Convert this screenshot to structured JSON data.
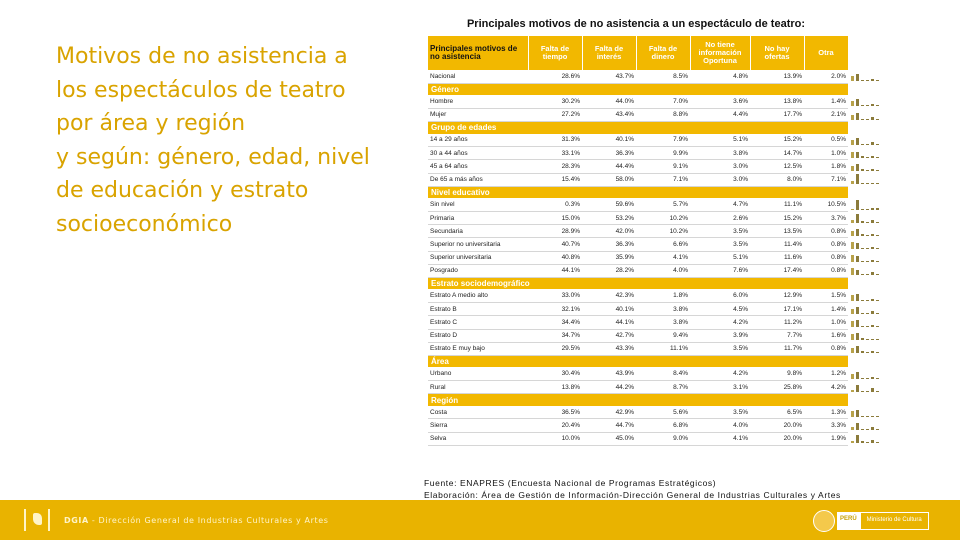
{
  "slide_title": "Motivos de no asistencia a\nlos espectáculos de teatro\npor área y región\ny según: género, edad, nivel\nde educación y estrato\nsocioeconómico",
  "table": {
    "caption": "Principales motivos de no asistencia a un espectáculo de teatro:",
    "headers": [
      "Principales motivos de no asistencia",
      "Falta de tiempo",
      "Falta de interés",
      "Falta de dinero",
      "No tiene información Oportuna",
      "No hay ofertas",
      "Otra"
    ],
    "rows": [
      {
        "type": "row",
        "label": "Nacional",
        "values": [
          "28.6%",
          "43.7%",
          "8.5%",
          "4.8%",
          "13.9%",
          "2.0%"
        ]
      },
      {
        "type": "group",
        "label": "Género"
      },
      {
        "type": "row",
        "label": "Hombre",
        "values": [
          "30.2%",
          "44.0%",
          "7.0%",
          "3.6%",
          "13.8%",
          "1.4%"
        ]
      },
      {
        "type": "row",
        "label": "Mujer",
        "values": [
          "27.2%",
          "43.4%",
          "8.8%",
          "4.4%",
          "17.7%",
          "2.1%"
        ]
      },
      {
        "type": "group",
        "label": "Grupo de edades"
      },
      {
        "type": "row",
        "label": "14 a 29 años",
        "values": [
          "31.3%",
          "40.1%",
          "7.9%",
          "5.1%",
          "15.2%",
          "0.5%"
        ]
      },
      {
        "type": "row",
        "label": "30 a 44 años",
        "values": [
          "33.1%",
          "36.3%",
          "9.9%",
          "3.8%",
          "14.7%",
          "1.0%"
        ]
      },
      {
        "type": "row",
        "label": "45 a 64 años",
        "values": [
          "28.3%",
          "44.4%",
          "9.1%",
          "3.0%",
          "12.5%",
          "1.8%"
        ]
      },
      {
        "type": "row",
        "label": "De 65 a más años",
        "values": [
          "15.4%",
          "58.0%",
          "7.1%",
          "3.0%",
          "8.0%",
          "7.1%"
        ]
      },
      {
        "type": "group",
        "label": "Nivel educativo"
      },
      {
        "type": "row",
        "label": "Sin nivel",
        "values": [
          "0.3%",
          "59.6%",
          "5.7%",
          "4.7%",
          "11.1%",
          "10.5%"
        ]
      },
      {
        "type": "row",
        "label": "Primaria",
        "values": [
          "15.0%",
          "53.2%",
          "10.2%",
          "2.6%",
          "15.2%",
          "3.7%"
        ]
      },
      {
        "type": "row",
        "label": "Secundaria",
        "values": [
          "28.9%",
          "42.0%",
          "10.2%",
          "3.5%",
          "13.5%",
          "0.8%"
        ]
      },
      {
        "type": "row",
        "label": "Superior no universitaria",
        "values": [
          "40.7%",
          "36.3%",
          "6.6%",
          "3.5%",
          "11.4%",
          "0.8%"
        ]
      },
      {
        "type": "row",
        "label": "Superior universitaria",
        "values": [
          "40.8%",
          "35.9%",
          "4.1%",
          "5.1%",
          "11.6%",
          "0.8%"
        ]
      },
      {
        "type": "row",
        "label": "Posgrado",
        "values": [
          "44.1%",
          "28.2%",
          "4.0%",
          "7.6%",
          "17.4%",
          "0.8%"
        ]
      },
      {
        "type": "group",
        "label": "Estrato sociodemográfico"
      },
      {
        "type": "row",
        "label": "Estrato A medio alto",
        "values": [
          "33.0%",
          "42.3%",
          "1.8%",
          "6.0%",
          "12.9%",
          "1.5%"
        ]
      },
      {
        "type": "row",
        "label": "Estrato B",
        "values": [
          "32.1%",
          "40.1%",
          "3.8%",
          "4.5%",
          "17.1%",
          "1.4%"
        ]
      },
      {
        "type": "row",
        "label": "Estrato C",
        "values": [
          "34.4%",
          "44.1%",
          "3.8%",
          "4.2%",
          "11.2%",
          "1.0%"
        ]
      },
      {
        "type": "row",
        "label": "Estrato D",
        "values": [
          "34.7%",
          "42.7%",
          "9.4%",
          "3.9%",
          "7.7%",
          "1.6%"
        ]
      },
      {
        "type": "row",
        "label": "Estrato E muy bajo",
        "values": [
          "29.5%",
          "43.3%",
          "11.1%",
          "3.5%",
          "11.7%",
          "0.8%"
        ]
      },
      {
        "type": "group",
        "label": "Área"
      },
      {
        "type": "row",
        "label": "Urbano",
        "values": [
          "30.4%",
          "43.9%",
          "8.4%",
          "4.2%",
          "9.8%",
          "1.2%"
        ]
      },
      {
        "type": "row",
        "label": "Rural",
        "values": [
          "13.8%",
          "44.2%",
          "8.7%",
          "3.1%",
          "25.8%",
          "4.2%"
        ]
      },
      {
        "type": "group",
        "label": "Región"
      },
      {
        "type": "row",
        "label": "Costa",
        "values": [
          "36.5%",
          "42.9%",
          "5.6%",
          "3.5%",
          "6.5%",
          "1.3%"
        ]
      },
      {
        "type": "row",
        "label": "Sierra",
        "values": [
          "20.4%",
          "44.7%",
          "6.8%",
          "4.0%",
          "20.0%",
          "3.3%"
        ]
      },
      {
        "type": "row",
        "label": "Selva",
        "values": [
          "10.0%",
          "45.0%",
          "9.0%",
          "4.1%",
          "20.0%",
          "1.9%"
        ]
      }
    ]
  },
  "footer": {
    "source": "Fuente: ENAPRES (Encuesta Nacional de Programas Estratégicos)",
    "elaboration": "Elaboración: Área de Gestión de Información-Dirección General de Industrias Culturales y Artes"
  },
  "bottom_bar": {
    "org_abbr": "DGIA",
    "org_full": " - Dirección General de Industrias Culturales y Artes",
    "gov_peru": "PERÚ",
    "gov_ministry": "Ministerio de Cultura"
  },
  "colors": {
    "accent": "#f2b800",
    "title": "#d9a300",
    "bottom_bar": "#e9b300",
    "spark_bar": "#8b7b3b"
  }
}
